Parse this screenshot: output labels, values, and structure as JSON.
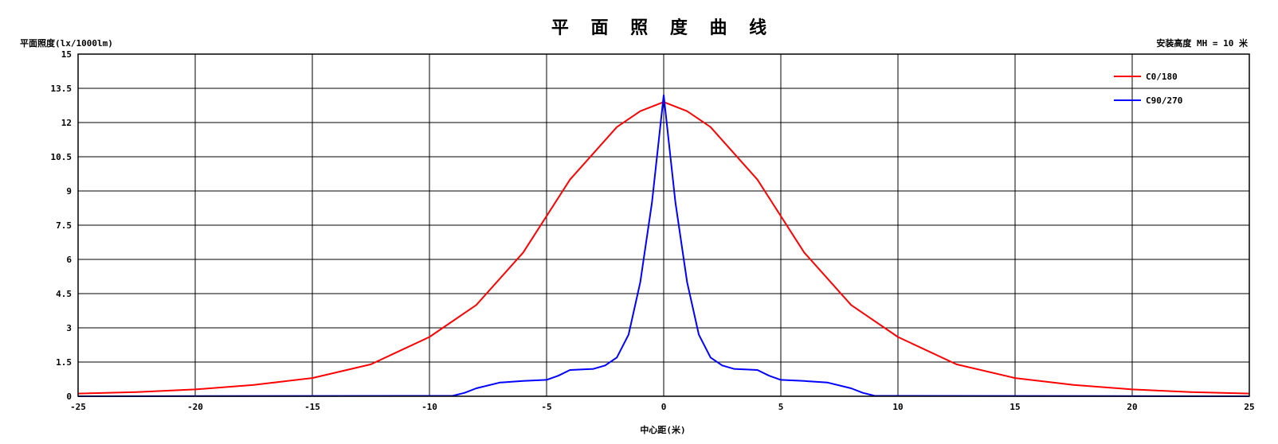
{
  "chart_data": {
    "type": "line",
    "title": "平 面 照 度 曲 线",
    "ylabel": "平面照度(lx/1000lm)",
    "xlabel": "中心距(米)",
    "annotation": "安装高度 MH = 10 米",
    "xlim": [
      -25,
      25
    ],
    "ylim": [
      0,
      15
    ],
    "x_ticks": [
      "-25",
      "-20",
      "-15",
      "-10",
      "-5",
      "0",
      "5",
      "10",
      "15",
      "20",
      "25"
    ],
    "y_ticks": [
      "0",
      "1.5",
      "3",
      "4.5",
      "6",
      "7.5",
      "9",
      "10.5",
      "12",
      "13.5",
      "15"
    ],
    "grid": true,
    "legend_position": "top-right",
    "series": [
      {
        "name": "C0/180",
        "color": "#ff0000",
        "x": [
          -25,
          -22.5,
          -20,
          -17.5,
          -15,
          -12.5,
          -10,
          -8,
          -6,
          -4,
          -2,
          -1,
          0,
          1,
          2,
          4,
          6,
          8,
          10,
          12.5,
          15,
          17.5,
          20,
          22.5,
          25
        ],
        "y": [
          0.12,
          0.18,
          0.3,
          0.5,
          0.8,
          1.4,
          2.6,
          4.0,
          6.3,
          9.5,
          11.8,
          12.5,
          12.9,
          12.5,
          11.8,
          9.5,
          6.3,
          4.0,
          2.6,
          1.4,
          0.8,
          0.5,
          0.3,
          0.18,
          0.12
        ]
      },
      {
        "name": "C90/270",
        "color": "#0000ff",
        "x": [
          -25,
          -9,
          -8.5,
          -8,
          -7,
          -6,
          -5,
          -4.5,
          -4,
          -3,
          -2.5,
          -2,
          -1.5,
          -1,
          -0.5,
          0,
          0.5,
          1,
          1.5,
          2,
          2.5,
          3,
          4,
          4.5,
          5,
          6,
          7,
          8,
          8.5,
          9,
          25
        ],
        "y": [
          0,
          0.02,
          0.15,
          0.35,
          0.6,
          0.67,
          0.72,
          0.9,
          1.15,
          1.2,
          1.35,
          1.7,
          2.7,
          5.0,
          8.5,
          13.2,
          8.5,
          5.0,
          2.7,
          1.7,
          1.35,
          1.2,
          1.15,
          0.9,
          0.72,
          0.67,
          0.6,
          0.35,
          0.15,
          0.02,
          0
        ]
      }
    ]
  }
}
